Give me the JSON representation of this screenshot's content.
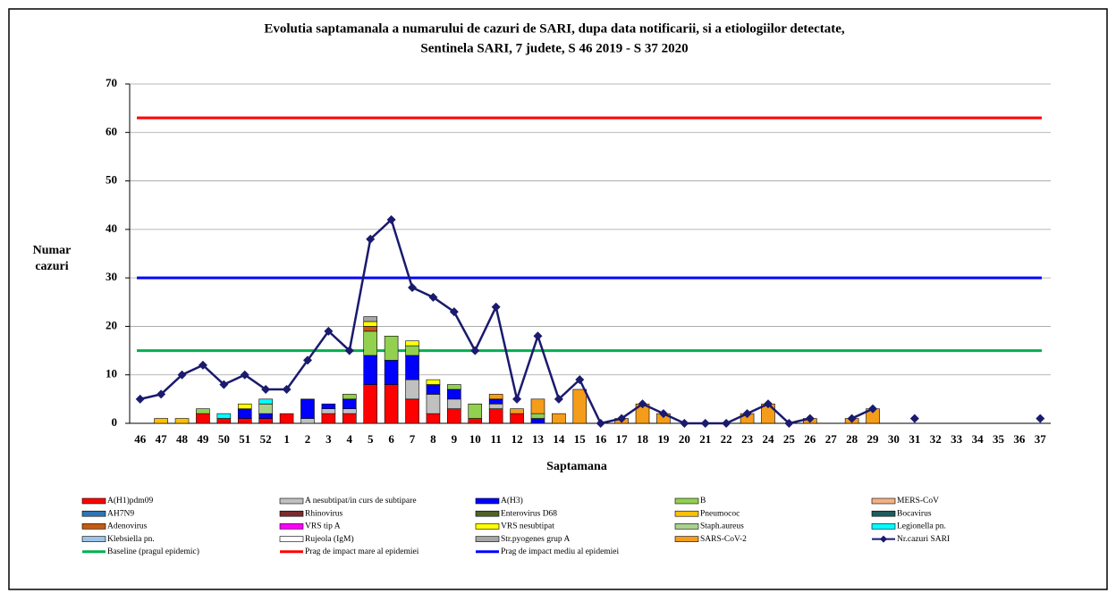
{
  "chart_data": {
    "type": "bar",
    "title": "Evolutia saptamanala a numarului  de cazuri de SARI, dupa data notificarii, si a etiologiilor detectate,",
    "subtitle": "Sentinela SARI, 7 judete, S 46 2019 - S 37 2020",
    "y_label": "Numar cazuri",
    "x_label": "Saptamana",
    "categories": [
      "46",
      "47",
      "48",
      "49",
      "50",
      "51",
      "52",
      "1",
      "2",
      "3",
      "4",
      "5",
      "6",
      "7",
      "8",
      "9",
      "10",
      "11",
      "12",
      "13",
      "14",
      "15",
      "16",
      "17",
      "18",
      "19",
      "20",
      "21",
      "22",
      "23",
      "24",
      "25",
      "26",
      "27",
      "28",
      "29",
      "30",
      "31",
      "32",
      "33",
      "34",
      "35",
      "36",
      "37"
    ],
    "ylim": [
      0,
      70
    ],
    "yticks": [
      0,
      10,
      20,
      30,
      40,
      50,
      60,
      70
    ],
    "grid": true,
    "stacked": true,
    "legend": "bottom",
    "series": [
      {
        "name": "A(H1)pdm09",
        "color": "#ff0000",
        "values": [
          0,
          0,
          0,
          2,
          1,
          1,
          1,
          2,
          0,
          2,
          2,
          8,
          8,
          5,
          2,
          3,
          1,
          3,
          2,
          0,
          0,
          0,
          0,
          0,
          0,
          0,
          0,
          0,
          0,
          0,
          0,
          0,
          0,
          0,
          0,
          0,
          0,
          0,
          0,
          0,
          0,
          0,
          0,
          0
        ]
      },
      {
        "name": "A nesubtipat/in curs de subtipare",
        "color": "#c0c0c0",
        "values": [
          0,
          0,
          0,
          0,
          0,
          0,
          0,
          0,
          1,
          1,
          1,
          0,
          0,
          4,
          4,
          2,
          0,
          1,
          0,
          0,
          0,
          0,
          0,
          0,
          0,
          0,
          0,
          0,
          0,
          0,
          0,
          0,
          0,
          0,
          0,
          0,
          0,
          0,
          0,
          0,
          0,
          0,
          0,
          0
        ]
      },
      {
        "name": "A(H3)",
        "color": "#0000ff",
        "values": [
          0,
          0,
          0,
          0,
          0,
          2,
          1,
          0,
          4,
          1,
          2,
          6,
          5,
          5,
          2,
          2,
          0,
          1,
          0,
          1,
          0,
          0,
          0,
          0,
          0,
          0,
          0,
          0,
          0,
          0,
          0,
          0,
          0,
          0,
          0,
          0,
          0,
          0,
          0,
          0,
          0,
          0,
          0,
          0
        ]
      },
      {
        "name": "B",
        "color": "#92d050",
        "values": [
          0,
          0,
          0,
          1,
          0,
          0,
          0,
          0,
          0,
          0,
          1,
          5,
          5,
          2,
          0,
          1,
          3,
          0,
          0,
          1,
          0,
          0,
          0,
          0,
          0,
          0,
          0,
          0,
          0,
          0,
          0,
          0,
          0,
          0,
          0,
          0,
          0,
          0,
          0,
          0,
          0,
          0,
          0,
          0
        ]
      },
      {
        "name": "MERS-CoV",
        "color": "#f4b183",
        "values": [
          0,
          0,
          0,
          0,
          0,
          0,
          0,
          0,
          0,
          0,
          0,
          0,
          0,
          0,
          0,
          0,
          0,
          0,
          0,
          0,
          0,
          0,
          0,
          0,
          0,
          0,
          0,
          0,
          0,
          0,
          0,
          0,
          0,
          0,
          0,
          0,
          0,
          0,
          0,
          0,
          0,
          0,
          0,
          0
        ]
      },
      {
        "name": "AH7N9",
        "color": "#2e75b6",
        "values": [
          0,
          0,
          0,
          0,
          0,
          0,
          0,
          0,
          0,
          0,
          0,
          0,
          0,
          0,
          0,
          0,
          0,
          0,
          0,
          0,
          0,
          0,
          0,
          0,
          0,
          0,
          0,
          0,
          0,
          0,
          0,
          0,
          0,
          0,
          0,
          0,
          0,
          0,
          0,
          0,
          0,
          0,
          0,
          0
        ]
      },
      {
        "name": "Rhinovirus",
        "color": "#7b2c2c",
        "values": [
          0,
          0,
          0,
          0,
          0,
          0,
          0,
          0,
          0,
          0,
          0,
          0,
          0,
          0,
          0,
          0,
          0,
          0,
          0,
          0,
          0,
          0,
          0,
          0,
          0,
          0,
          0,
          0,
          0,
          0,
          0,
          0,
          0,
          0,
          0,
          0,
          0,
          0,
          0,
          0,
          0,
          0,
          0,
          0
        ]
      },
      {
        "name": "Enterovirus D68",
        "color": "#4f6228",
        "values": [
          0,
          0,
          0,
          0,
          0,
          0,
          0,
          0,
          0,
          0,
          0,
          0,
          0,
          0,
          0,
          0,
          0,
          0,
          0,
          0,
          0,
          0,
          0,
          0,
          0,
          0,
          0,
          0,
          0,
          0,
          0,
          0,
          0,
          0,
          0,
          0,
          0,
          0,
          0,
          0,
          0,
          0,
          0,
          0
        ]
      },
      {
        "name": "Pneumococ",
        "color": "#ffc000",
        "values": [
          0,
          1,
          1,
          0,
          0,
          0,
          0,
          0,
          0,
          0,
          0,
          0,
          0,
          0,
          0,
          0,
          0,
          0,
          0,
          0,
          0,
          0,
          0,
          0,
          0,
          0,
          0,
          0,
          0,
          0,
          0,
          0,
          0,
          0,
          0,
          0,
          0,
          0,
          0,
          0,
          0,
          0,
          0,
          0
        ]
      },
      {
        "name": "Bocavirus",
        "color": "#1f5c5c",
        "values": [
          0,
          0,
          0,
          0,
          0,
          0,
          0,
          0,
          0,
          0,
          0,
          0,
          0,
          0,
          0,
          0,
          0,
          0,
          0,
          0,
          0,
          0,
          0,
          0,
          0,
          0,
          0,
          0,
          0,
          0,
          0,
          0,
          0,
          0,
          0,
          0,
          0,
          0,
          0,
          0,
          0,
          0,
          0,
          0
        ]
      },
      {
        "name": "Adenovirus",
        "color": "#c55a11",
        "values": [
          0,
          0,
          0,
          0,
          0,
          0,
          0,
          0,
          0,
          0,
          0,
          1,
          0,
          0,
          0,
          0,
          0,
          0,
          0,
          0,
          0,
          0,
          0,
          0,
          0,
          0,
          0,
          0,
          0,
          0,
          0,
          0,
          0,
          0,
          0,
          0,
          0,
          0,
          0,
          0,
          0,
          0,
          0,
          0
        ]
      },
      {
        "name": "VRS tip A",
        "color": "#ff00ff",
        "values": [
          0,
          0,
          0,
          0,
          0,
          0,
          0,
          0,
          0,
          0,
          0,
          0,
          0,
          0,
          0,
          0,
          0,
          0,
          0,
          0,
          0,
          0,
          0,
          0,
          0,
          0,
          0,
          0,
          0,
          0,
          0,
          0,
          0,
          0,
          0,
          0,
          0,
          0,
          0,
          0,
          0,
          0,
          0,
          0
        ]
      },
      {
        "name": "VRS nesubtipat",
        "color": "#ffff00",
        "values": [
          0,
          0,
          0,
          0,
          0,
          1,
          0,
          0,
          0,
          0,
          0,
          1,
          0,
          1,
          1,
          0,
          0,
          0,
          0,
          0,
          0,
          0,
          0,
          0,
          0,
          0,
          0,
          0,
          0,
          0,
          0,
          0,
          0,
          0,
          0,
          0,
          0,
          0,
          0,
          0,
          0,
          0,
          0,
          0
        ]
      },
      {
        "name": "Staph.aureus",
        "color": "#a9d18e",
        "values": [
          0,
          0,
          0,
          0,
          0,
          0,
          2,
          0,
          0,
          0,
          0,
          0,
          0,
          0,
          0,
          0,
          0,
          0,
          0,
          0,
          0,
          0,
          0,
          0,
          0,
          0,
          0,
          0,
          0,
          0,
          0,
          0,
          0,
          0,
          0,
          0,
          0,
          0,
          0,
          0,
          0,
          0,
          0,
          0
        ]
      },
      {
        "name": "Legionella pn.",
        "color": "#00ffff",
        "values": [
          0,
          0,
          0,
          0,
          1,
          0,
          1,
          0,
          0,
          0,
          0,
          0,
          0,
          0,
          0,
          0,
          0,
          0,
          0,
          0,
          0,
          0,
          0,
          0,
          0,
          0,
          0,
          0,
          0,
          0,
          0,
          0,
          0,
          0,
          0,
          0,
          0,
          0,
          0,
          0,
          0,
          0,
          0,
          0
        ]
      },
      {
        "name": "Klebsiella pn.",
        "color": "#9dc3e6",
        "values": [
          0,
          0,
          0,
          0,
          0,
          0,
          0,
          0,
          0,
          0,
          0,
          0,
          0,
          0,
          0,
          0,
          0,
          0,
          0,
          0,
          0,
          0,
          0,
          0,
          0,
          0,
          0,
          0,
          0,
          0,
          0,
          0,
          0,
          0,
          0,
          0,
          0,
          0,
          0,
          0,
          0,
          0,
          0,
          0
        ]
      },
      {
        "name": "Rujeola (IgM)",
        "color": "#ffffff",
        "values": [
          0,
          0,
          0,
          0,
          0,
          0,
          0,
          0,
          0,
          0,
          0,
          0,
          0,
          0,
          0,
          0,
          0,
          0,
          0,
          0,
          0,
          0,
          0,
          0,
          0,
          0,
          0,
          0,
          0,
          0,
          0,
          0,
          0,
          0,
          0,
          0,
          0,
          0,
          0,
          0,
          0,
          0,
          0,
          0
        ]
      },
      {
        "name": "Str.pyogenes grup A",
        "color": "#a6a6a6",
        "values": [
          0,
          0,
          0,
          0,
          0,
          0,
          0,
          0,
          0,
          0,
          0,
          1,
          0,
          0,
          0,
          0,
          0,
          0,
          0,
          0,
          0,
          0,
          0,
          0,
          0,
          0,
          0,
          0,
          0,
          0,
          0,
          0,
          0,
          0,
          0,
          0,
          0,
          0,
          0,
          0,
          0,
          0,
          0,
          0
        ]
      },
      {
        "name": "SARS-CoV-2",
        "color": "#f59d1a",
        "values": [
          0,
          0,
          0,
          0,
          0,
          0,
          0,
          0,
          0,
          0,
          0,
          0,
          0,
          0,
          0,
          0,
          0,
          1,
          1,
          3,
          2,
          7,
          0,
          1,
          4,
          2,
          0,
          0,
          0,
          2,
          4,
          0,
          1,
          0,
          1,
          3,
          0,
          0,
          0,
          0,
          0,
          0,
          0,
          0
        ]
      },
      {
        "name": "Nr.cazuri SARI",
        "type": "line",
        "color": "#1a1a6e",
        "values": [
          5,
          6,
          10,
          12,
          8,
          10,
          7,
          7,
          13,
          19,
          15,
          38,
          42,
          28,
          26,
          23,
          15,
          24,
          5,
          18,
          5,
          9,
          0,
          1,
          4,
          2,
          0,
          0,
          0,
          2,
          4,
          0,
          1,
          null,
          1,
          3,
          null,
          1,
          null,
          null,
          null,
          null,
          null,
          1
        ]
      }
    ],
    "reference_lines": [
      {
        "name": "Baseline (pragul epidemic)",
        "color": "#00b050",
        "value": 15
      },
      {
        "name": "Prag de impact mare al epidemiei",
        "color": "#ff0000",
        "value": 63
      },
      {
        "name": "Prag de impact mediu al epidemiei",
        "color": "#0000ff",
        "value": 30
      }
    ]
  }
}
